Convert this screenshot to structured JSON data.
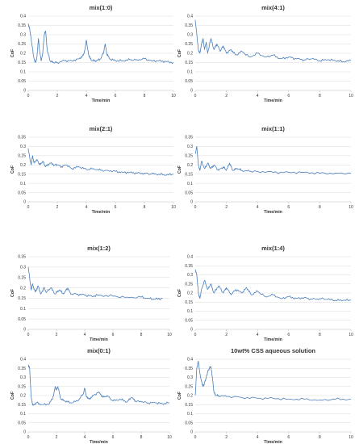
{
  "colors": {
    "series": "#4a7ebb",
    "grid": "#d9d9d9",
    "text": "#333333"
  },
  "chart_data": [
    {
      "type": "line",
      "title": "mix(1:0)",
      "xlabel": "Time/min",
      "ylabel": "CoF",
      "xlim": [
        0,
        10
      ],
      "ylim": [
        0,
        0.4
      ],
      "xticks": [
        0,
        2,
        4,
        6,
        8,
        10
      ],
      "yticks": [
        0,
        0.05,
        0.1,
        0.15,
        0.2,
        0.25,
        0.3,
        0.35,
        0.4
      ],
      "series": [
        {
          "name": "",
          "x": [
            0,
            0.1,
            0.2,
            0.3,
            0.4,
            0.5,
            0.6,
            0.7,
            0.8,
            0.9,
            1.0,
            1.1,
            1.2,
            1.3,
            1.5,
            1.7,
            2.0,
            2.5,
            3.0,
            3.5,
            3.8,
            3.9,
            4.0,
            4.1,
            4.2,
            4.4,
            4.7,
            5.0,
            5.2,
            5.3,
            5.4,
            5.6,
            6.0,
            6.5,
            7.0,
            7.5,
            8.0,
            8.5,
            9.0,
            9.5,
            10.0
          ],
          "y": [
            0.36,
            0.33,
            0.28,
            0.22,
            0.17,
            0.15,
            0.18,
            0.28,
            0.2,
            0.16,
            0.2,
            0.3,
            0.32,
            0.22,
            0.16,
            0.15,
            0.15,
            0.16,
            0.16,
            0.17,
            0.19,
            0.22,
            0.27,
            0.22,
            0.18,
            0.16,
            0.16,
            0.17,
            0.21,
            0.25,
            0.2,
            0.17,
            0.16,
            0.16,
            0.165,
            0.165,
            0.17,
            0.16,
            0.16,
            0.155,
            0.15
          ]
        }
      ]
    },
    {
      "type": "line",
      "title": "mix(4:1)",
      "xlabel": "Time/min",
      "ylabel": "CoF",
      "xlim": [
        0,
        10
      ],
      "ylim": [
        0,
        0.4
      ],
      "xticks": [
        0,
        2,
        4,
        6,
        8,
        10
      ],
      "yticks": [
        0,
        0.05,
        0.1,
        0.15,
        0.2,
        0.25,
        0.3,
        0.35,
        0.4
      ],
      "series": [
        {
          "name": "",
          "x": [
            0,
            0.1,
            0.2,
            0.3,
            0.4,
            0.5,
            0.6,
            0.7,
            0.8,
            0.9,
            1.0,
            1.2,
            1.4,
            1.6,
            1.8,
            2.0,
            2.3,
            2.6,
            3.0,
            3.5,
            4.0,
            4.5,
            5.0,
            5.5,
            6.0,
            6.5,
            7.0,
            7.5,
            8.0,
            8.5,
            9.0,
            9.5,
            10.0
          ],
          "y": [
            0.38,
            0.3,
            0.22,
            0.2,
            0.25,
            0.28,
            0.22,
            0.26,
            0.2,
            0.24,
            0.28,
            0.22,
            0.25,
            0.21,
            0.24,
            0.2,
            0.22,
            0.19,
            0.21,
            0.18,
            0.2,
            0.18,
            0.19,
            0.17,
            0.18,
            0.17,
            0.165,
            0.17,
            0.16,
            0.165,
            0.16,
            0.155,
            0.16
          ]
        }
      ]
    },
    {
      "type": "line",
      "title": "mix(2:1)",
      "xlabel": "Time/min",
      "ylabel": "CoF",
      "xlim": [
        0,
        10
      ],
      "ylim": [
        0,
        0.35
      ],
      "xticks": [
        0,
        2,
        4,
        6,
        8,
        10
      ],
      "yticks": [
        0,
        0.05,
        0.1,
        0.15,
        0.2,
        0.25,
        0.3,
        0.35
      ],
      "series": [
        {
          "name": "",
          "x": [
            0,
            0.1,
            0.2,
            0.3,
            0.4,
            0.6,
            0.8,
            1.0,
            1.2,
            1.5,
            1.8,
            2.0,
            2.3,
            2.6,
            3.0,
            3.5,
            4.0,
            4.5,
            5.0,
            5.5,
            6.0,
            6.5,
            7.0,
            7.5,
            8.0,
            8.5,
            9.0,
            9.5,
            10.0
          ],
          "y": [
            0.29,
            0.24,
            0.2,
            0.25,
            0.21,
            0.23,
            0.2,
            0.22,
            0.19,
            0.21,
            0.2,
            0.2,
            0.19,
            0.2,
            0.18,
            0.19,
            0.175,
            0.18,
            0.17,
            0.17,
            0.165,
            0.16,
            0.16,
            0.155,
            0.155,
            0.15,
            0.15,
            0.145,
            0.15
          ]
        }
      ]
    },
    {
      "type": "line",
      "title": "mix(1:1)",
      "xlabel": "Time/min",
      "ylabel": "CoF",
      "xlim": [
        0,
        10
      ],
      "ylim": [
        0,
        0.35
      ],
      "xticks": [
        0,
        2,
        4,
        6,
        8,
        10
      ],
      "yticks": [
        0,
        0.05,
        0.1,
        0.15,
        0.2,
        0.25,
        0.3,
        0.35
      ],
      "series": [
        {
          "name": "",
          "x": [
            0,
            0.1,
            0.2,
            0.3,
            0.4,
            0.6,
            0.8,
            1.0,
            1.2,
            1.5,
            1.8,
            2.0,
            2.2,
            2.4,
            2.7,
            3.0,
            3.5,
            4.0,
            5.0,
            6.0,
            7.0,
            8.0,
            9.0,
            10.0
          ],
          "y": [
            0.26,
            0.3,
            0.2,
            0.17,
            0.22,
            0.18,
            0.21,
            0.18,
            0.2,
            0.17,
            0.19,
            0.17,
            0.21,
            0.17,
            0.18,
            0.17,
            0.165,
            0.165,
            0.16,
            0.16,
            0.16,
            0.155,
            0.155,
            0.155
          ]
        }
      ]
    },
    {
      "type": "line",
      "title": "mix(1:2)",
      "xlabel": "Time/min",
      "ylabel": "CoF",
      "xlim": [
        0,
        10
      ],
      "ylim": [
        0,
        0.35
      ],
      "xticks": [
        0,
        2,
        4,
        6,
        8,
        10
      ],
      "yticks": [
        0,
        0.05,
        0.1,
        0.15,
        0.2,
        0.25,
        0.3,
        0.35
      ],
      "series": [
        {
          "name": "",
          "x": [
            0,
            0.1,
            0.2,
            0.3,
            0.5,
            0.7,
            0.9,
            1.1,
            1.3,
            1.6,
            1.9,
            2.2,
            2.5,
            2.8,
            3.0,
            3.5,
            4.0,
            4.5,
            5.0,
            6.0,
            7.0,
            8.0,
            8.5,
            9.0,
            9.5
          ],
          "y": [
            0.3,
            0.25,
            0.19,
            0.22,
            0.18,
            0.21,
            0.17,
            0.2,
            0.18,
            0.2,
            0.17,
            0.19,
            0.17,
            0.2,
            0.17,
            0.17,
            0.165,
            0.16,
            0.165,
            0.16,
            0.155,
            0.155,
            0.15,
            0.145,
            0.15
          ]
        }
      ]
    },
    {
      "type": "line",
      "title": "mix(1:4)",
      "xlabel": "Time/min",
      "ylabel": "CoF",
      "xlim": [
        0,
        10
      ],
      "ylim": [
        0,
        0.4
      ],
      "xticks": [
        0,
        2,
        4,
        6,
        8,
        10
      ],
      "yticks": [
        0,
        0.05,
        0.1,
        0.15,
        0.2,
        0.25,
        0.3,
        0.35,
        0.4
      ],
      "series": [
        {
          "name": "",
          "x": [
            0,
            0.1,
            0.2,
            0.3,
            0.4,
            0.6,
            0.8,
            1.0,
            1.2,
            1.5,
            1.8,
            2.0,
            2.3,
            2.6,
            3.0,
            3.3,
            3.6,
            4.0,
            4.5,
            5.0,
            5.5,
            6.0,
            6.5,
            7.0,
            7.5,
            8.0,
            8.5,
            9.0,
            9.5,
            10.0
          ],
          "y": [
            0.33,
            0.3,
            0.2,
            0.17,
            0.22,
            0.27,
            0.22,
            0.25,
            0.2,
            0.24,
            0.2,
            0.23,
            0.19,
            0.22,
            0.2,
            0.23,
            0.19,
            0.21,
            0.18,
            0.19,
            0.17,
            0.18,
            0.17,
            0.175,
            0.165,
            0.17,
            0.165,
            0.16,
            0.16,
            0.16
          ]
        }
      ]
    },
    {
      "type": "line",
      "title": "mix(0:1)",
      "xlabel": "Time/min",
      "ylabel": "CoF",
      "xlim": [
        0,
        10
      ],
      "ylim": [
        0,
        0.4
      ],
      "xticks": [
        0,
        2,
        4,
        6,
        8,
        10
      ],
      "yticks": [
        0,
        0.05,
        0.1,
        0.15,
        0.2,
        0.25,
        0.3,
        0.35,
        0.4
      ],
      "series": [
        {
          "name": "",
          "x": [
            0,
            0.1,
            0.2,
            0.3,
            0.4,
            0.6,
            1.0,
            1.5,
            1.8,
            1.9,
            2.0,
            2.1,
            2.3,
            2.6,
            3.0,
            3.5,
            3.9,
            4.0,
            4.1,
            4.3,
            4.6,
            5.0,
            5.3,
            5.6,
            6.0,
            6.5,
            7.0,
            7.3,
            7.6,
            8.0,
            8.5,
            9.0,
            9.5,
            10.0
          ],
          "y": [
            0.37,
            0.35,
            0.2,
            0.15,
            0.15,
            0.16,
            0.15,
            0.155,
            0.2,
            0.25,
            0.23,
            0.25,
            0.18,
            0.17,
            0.16,
            0.17,
            0.21,
            0.24,
            0.2,
            0.18,
            0.2,
            0.22,
            0.19,
            0.2,
            0.17,
            0.18,
            0.165,
            0.19,
            0.17,
            0.165,
            0.16,
            0.16,
            0.155,
            0.16
          ]
        }
      ]
    },
    {
      "type": "line",
      "title": "10wt% CSS aqueous solution",
      "xlabel": "Time/min",
      "ylabel": "CoF",
      "xlim": [
        0,
        10
      ],
      "ylim": [
        0,
        0.4
      ],
      "xticks": [
        0,
        2,
        4,
        6,
        8,
        10
      ],
      "yticks": [
        0,
        0.05,
        0.1,
        0.15,
        0.2,
        0.25,
        0.3,
        0.35,
        0.4
      ],
      "series": [
        {
          "name": "",
          "x": [
            0,
            0.1,
            0.2,
            0.3,
            0.4,
            0.5,
            0.6,
            0.7,
            0.8,
            0.9,
            1.0,
            1.1,
            1.2,
            1.3,
            1.5,
            2.0,
            3.0,
            4.0,
            5.0,
            6.0,
            7.0,
            8.0,
            9.0,
            10.0
          ],
          "y": [
            0.2,
            0.35,
            0.39,
            0.32,
            0.28,
            0.25,
            0.27,
            0.3,
            0.33,
            0.35,
            0.36,
            0.3,
            0.22,
            0.2,
            0.2,
            0.195,
            0.19,
            0.185,
            0.185,
            0.18,
            0.18,
            0.175,
            0.18,
            0.18
          ]
        }
      ]
    }
  ]
}
